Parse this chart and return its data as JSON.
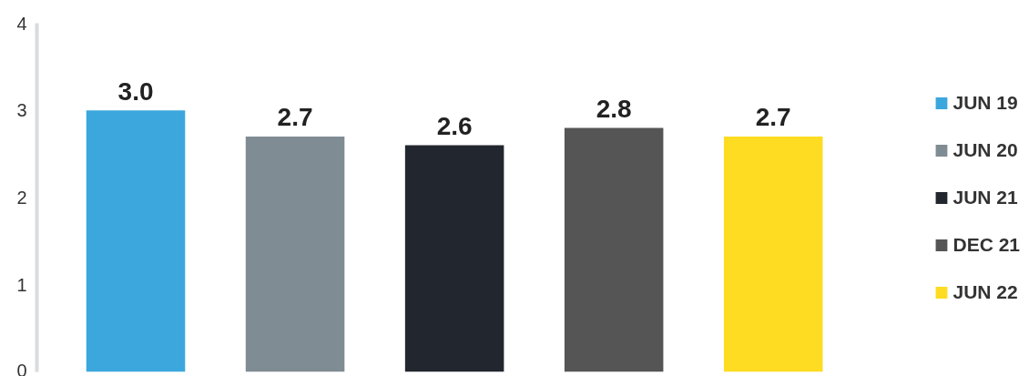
{
  "chart_data": {
    "type": "bar",
    "categories": [
      null,
      null,
      null,
      null,
      null
    ],
    "series": [
      {
        "name": "JUN 19",
        "color": "#3ba7dd",
        "values": [
          3.0,
          null,
          null,
          null,
          null
        ],
        "value_labels": [
          "3.0",
          null,
          null,
          null,
          null
        ]
      },
      {
        "name": "JUN 20",
        "color": "#7f8c93",
        "values": [
          null,
          2.7,
          null,
          null,
          null
        ],
        "value_labels": [
          null,
          "2.7",
          null,
          null,
          null
        ]
      },
      {
        "name": "JUN 21",
        "color": "#22262e",
        "values": [
          null,
          null,
          2.6,
          null,
          null
        ],
        "value_labels": [
          null,
          null,
          "2.6",
          null,
          null
        ]
      },
      {
        "name": "DEC 21",
        "color": "#555555",
        "values": [
          null,
          null,
          null,
          2.8,
          null
        ],
        "value_labels": [
          null,
          null,
          null,
          "2.8",
          null
        ]
      },
      {
        "name": "JUN 22",
        "color": "#fddc22",
        "values": [
          null,
          null,
          null,
          null,
          2.7
        ],
        "value_labels": [
          null,
          null,
          null,
          null,
          "2.7"
        ]
      }
    ],
    "stacked": true,
    "ylim": [
      0,
      4
    ],
    "yticks": [
      0,
      1,
      2,
      3,
      4
    ],
    "grid": false,
    "legend": "right"
  }
}
